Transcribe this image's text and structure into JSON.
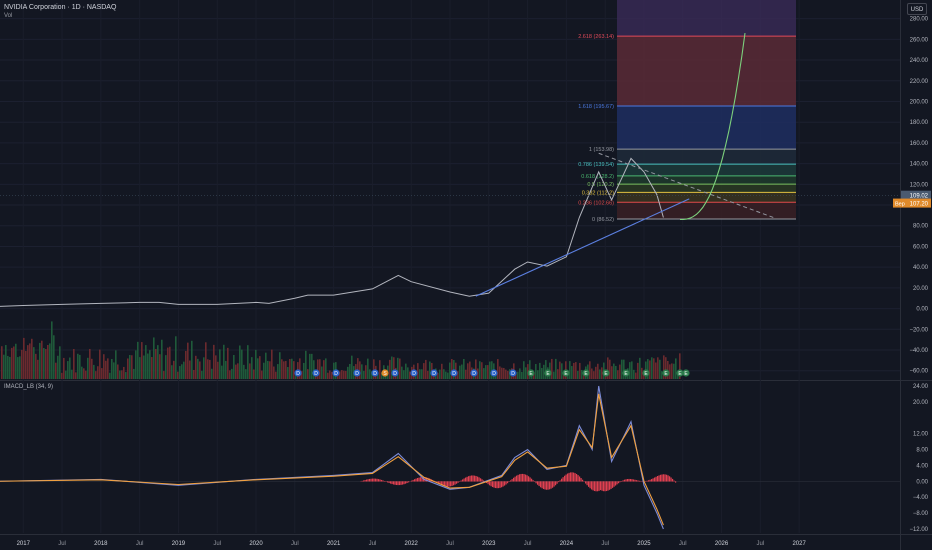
{
  "header": {
    "symbol": "NVIDIA Corporation · 1D · NASDAQ",
    "volume_label": "Vol",
    "currency": "USD",
    "indicator_label": "IMACD_LB (34, 9)"
  },
  "colors": {
    "background": "#131722",
    "price": "#b2b5be",
    "trendline": "#5b7fe0",
    "projection": "#7dd17d",
    "vol_up": "#1f5a3a",
    "vol_down": "#6b2a2e",
    "macd_line": "#7b8bd8",
    "signal_line": "#f0a040",
    "histogram": "#e04050",
    "last_price": "#4a5a70",
    "bep_price": "#e08a2a"
  },
  "chart_data": [
    {
      "type": "line",
      "title": "NVIDIA Corporation · 1D · NASDAQ",
      "x_ticks": [
        "2017",
        "Jul",
        "2018",
        "Jul",
        "2019",
        "Jul",
        "2020",
        "Jul",
        "2021",
        "Jul",
        "2022",
        "Jul",
        "2023",
        "Jul",
        "2024",
        "Jul",
        "2025",
        "Jul",
        "2026",
        "Jul",
        "2027"
      ],
      "y_ticks": [
        "280.00",
        "260.00",
        "240.00",
        "220.00",
        "200.00",
        "180.00",
        "160.00",
        "140.00",
        "120.00",
        "100.00",
        "80.00",
        "60.00",
        "40.00",
        "20.00",
        "0.00",
        "−20.00",
        "−40.00",
        "−60.00"
      ],
      "ylim": [
        -68,
        298
      ],
      "series": [
        {
          "x": [
            "2016-09",
            "2017-01",
            "2017-07",
            "2018-01",
            "2018-07",
            "2018-10",
            "2019-01",
            "2019-07",
            "2020-01",
            "2020-03",
            "2020-07",
            "2020-09",
            "2021-01",
            "2021-07",
            "2021-11",
            "2022-01",
            "2022-07",
            "2022-10",
            "2023-01",
            "2023-05",
            "2023-07",
            "2023-10",
            "2024-01",
            "2024-03",
            "2024-06",
            "2024-08",
            "2024-11",
            "2025-01",
            "2025-03",
            "2025-04"
          ],
          "y": [
            2,
            3,
            4,
            5,
            6,
            6,
            4,
            4,
            6,
            5,
            10,
            13,
            13,
            19,
            32,
            26,
            16,
            12,
            15,
            38,
            45,
            41,
            50,
            88,
            132,
            105,
            145,
            132,
            110,
            88
          ]
        }
      ],
      "volume_note": "Vol",
      "price_labels": [
        {
          "label": "",
          "value": "109.02"
        },
        {
          "label": "Bep",
          "value": "107.20"
        }
      ],
      "fibonacci": [
        {
          "label": "2.618 (263.14)",
          "value": 263.14,
          "color": "#e04a5a"
        },
        {
          "label": "1.618 (195.67)",
          "value": 195.67,
          "color": "#4a78e0"
        },
        {
          "label": "1 (153.98)",
          "value": 153.98,
          "color": "#9598a1"
        },
        {
          "label": "0.786 (139.54)",
          "value": 139.54,
          "color": "#4ac0c0"
        },
        {
          "label": "0.618 (128.2)",
          "value": 128.2,
          "color": "#4ab870"
        },
        {
          "label": "0.5 (120.2)",
          "value": 120.2,
          "color": "#7ac060"
        },
        {
          "label": "0.382 (112.2)",
          "value": 112.2,
          "color": "#e0c040"
        },
        {
          "label": "0.236 (102.66)",
          "value": 102.66,
          "color": "#e04a4a"
        },
        {
          "label": "0 (86.52)",
          "value": 86.52,
          "color": "#9598a1"
        }
      ],
      "events": [
        "D",
        "D",
        "D",
        "D",
        "D",
        "S",
        "D",
        "D",
        "D",
        "D",
        "D",
        "D",
        "D",
        "E",
        "E",
        "E",
        "E",
        "E",
        "E",
        "E",
        "E",
        "E",
        "E"
      ]
    },
    {
      "type": "line",
      "title": "IMACD_LB (34, 9)",
      "y_ticks": [
        "24.00",
        "20.00",
        "12.00",
        "8.00",
        "4.00",
        "0.00",
        "−4.00",
        "−8.00",
        "−12.00"
      ],
      "ylim": [
        -13,
        25
      ],
      "series": [
        {
          "x": [
            "2016-09",
            "2018-01",
            "2019-01",
            "2020-01",
            "2021-01",
            "2021-07",
            "2021-11",
            "2022-03",
            "2022-07",
            "2022-10",
            "2023-03",
            "2023-05",
            "2023-07",
            "2023-10",
            "2024-01",
            "2024-03",
            "2024-05",
            "2024-06",
            "2024-08",
            "2024-11",
            "2025-01",
            "2025-03",
            "2025-04"
          ],
          "y": [
            0,
            0.5,
            -1,
            0.5,
            1.5,
            2.2,
            7,
            0.5,
            -2,
            -1.5,
            1.5,
            6,
            8,
            3,
            4,
            14,
            8,
            24,
            5,
            15,
            -1,
            -8,
            -12
          ]
        },
        {
          "x": [
            "2016-09",
            "2018-01",
            "2019-01",
            "2020-01",
            "2021-01",
            "2021-07",
            "2021-11",
            "2022-03",
            "2022-07",
            "2022-10",
            "2023-03",
            "2023-05",
            "2023-07",
            "2023-10",
            "2024-01",
            "2024-03",
            "2024-05",
            "2024-06",
            "2024-08",
            "2024-11",
            "2025-01",
            "2025-03",
            "2025-04"
          ],
          "y": [
            0,
            0.4,
            -0.8,
            0.4,
            1.3,
            2,
            6.2,
            1,
            -1.7,
            -1.5,
            1.2,
            5.3,
            7.4,
            3.3,
            3.8,
            13,
            8.5,
            22,
            6,
            14,
            0,
            -7,
            -11
          ]
        }
      ]
    }
  ]
}
